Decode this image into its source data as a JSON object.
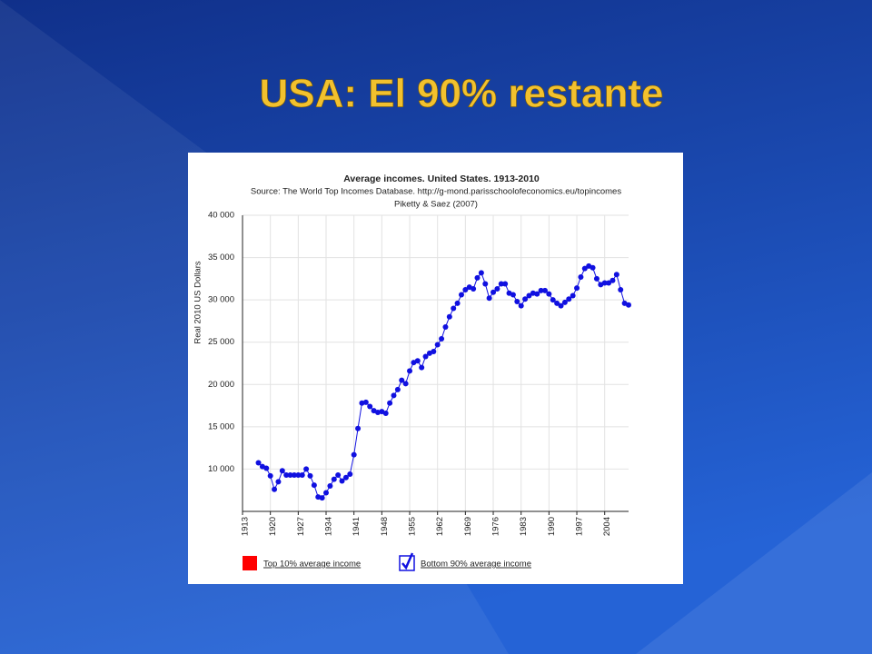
{
  "slide_title": "USA: El 90% restante",
  "chart_data": {
    "type": "line",
    "title": "Average incomes. United States. 1913-2010",
    "subtitle": "Source: The World Top Incomes Database. http://g-mond.parisschoolofeconomics.eu/topincomes",
    "note": "Piketty & Saez (2007)",
    "y_label": "Real 2010 US Dollars",
    "x": [
      1917,
      1918,
      1919,
      1920,
      1921,
      1922,
      1923,
      1924,
      1925,
      1926,
      1927,
      1928,
      1929,
      1930,
      1931,
      1932,
      1933,
      1934,
      1935,
      1936,
      1937,
      1938,
      1939,
      1940,
      1941,
      1942,
      1943,
      1944,
      1945,
      1946,
      1947,
      1948,
      1949,
      1950,
      1951,
      1952,
      1953,
      1954,
      1955,
      1956,
      1957,
      1958,
      1959,
      1960,
      1961,
      1962,
      1963,
      1964,
      1965,
      1966,
      1967,
      1968,
      1969,
      1970,
      1971,
      1972,
      1973,
      1974,
      1975,
      1976,
      1977,
      1978,
      1979,
      1980,
      1981,
      1982,
      1983,
      1984,
      1985,
      1986,
      1987,
      1988,
      1989,
      1990,
      1991,
      1992,
      1993,
      1994,
      1995,
      1996,
      1997,
      1998,
      1999,
      2000,
      2001,
      2002,
      2003,
      2004,
      2005,
      2006,
      2007,
      2008,
      2009,
      2010
    ],
    "series": [
      {
        "name": "Bottom 90% average income",
        "color": "#1010e0",
        "values": [
          10750,
          10300,
          10100,
          9200,
          7600,
          8500,
          9800,
          9300,
          9300,
          9300,
          9300,
          9300,
          10000,
          9200,
          8100,
          6700,
          6600,
          7200,
          8000,
          8800,
          9300,
          8600,
          9000,
          9400,
          11700,
          14800,
          17800,
          17900,
          17400,
          16900,
          16700,
          16800,
          16600,
          17800,
          18700,
          19400,
          20500,
          20100,
          21600,
          22600,
          22800,
          22000,
          23300,
          23700,
          23900,
          24700,
          25400,
          26800,
          28000,
          29000,
          29600,
          30600,
          31200,
          31500,
          31300,
          32600,
          33200,
          31900,
          30200,
          30900,
          31300,
          31900,
          31900,
          30800,
          30600,
          29800,
          29300,
          30100,
          30500,
          30800,
          30700,
          31100,
          31100,
          30700,
          30000,
          29600,
          29300,
          29700,
          30100,
          30500,
          31400,
          32700,
          33700,
          34000,
          33800,
          32500,
          31800,
          32000,
          32000,
          32300,
          33000,
          31200,
          29600,
          29400
        ]
      }
    ],
    "hidden_series": [
      {
        "name": "Top 10% average income",
        "color": "#ff0000"
      }
    ],
    "xlim": [
      1913,
      2010
    ],
    "xticks": [
      1913,
      1920,
      1927,
      1934,
      1941,
      1948,
      1955,
      1962,
      1969,
      1976,
      1983,
      1990,
      1997,
      2004
    ],
    "ylim": [
      5000,
      40000
    ],
    "yticks": [
      {
        "value": 10000,
        "label": "10 000"
      },
      {
        "value": 15000,
        "label": "15 000"
      },
      {
        "value": 20000,
        "label": "20 000"
      },
      {
        "value": 25000,
        "label": "25 000"
      },
      {
        "value": 30000,
        "label": "30 000"
      },
      {
        "value": 35000,
        "label": "35 000"
      },
      {
        "value": 40000,
        "label": "40 000"
      }
    ],
    "grid": true
  }
}
